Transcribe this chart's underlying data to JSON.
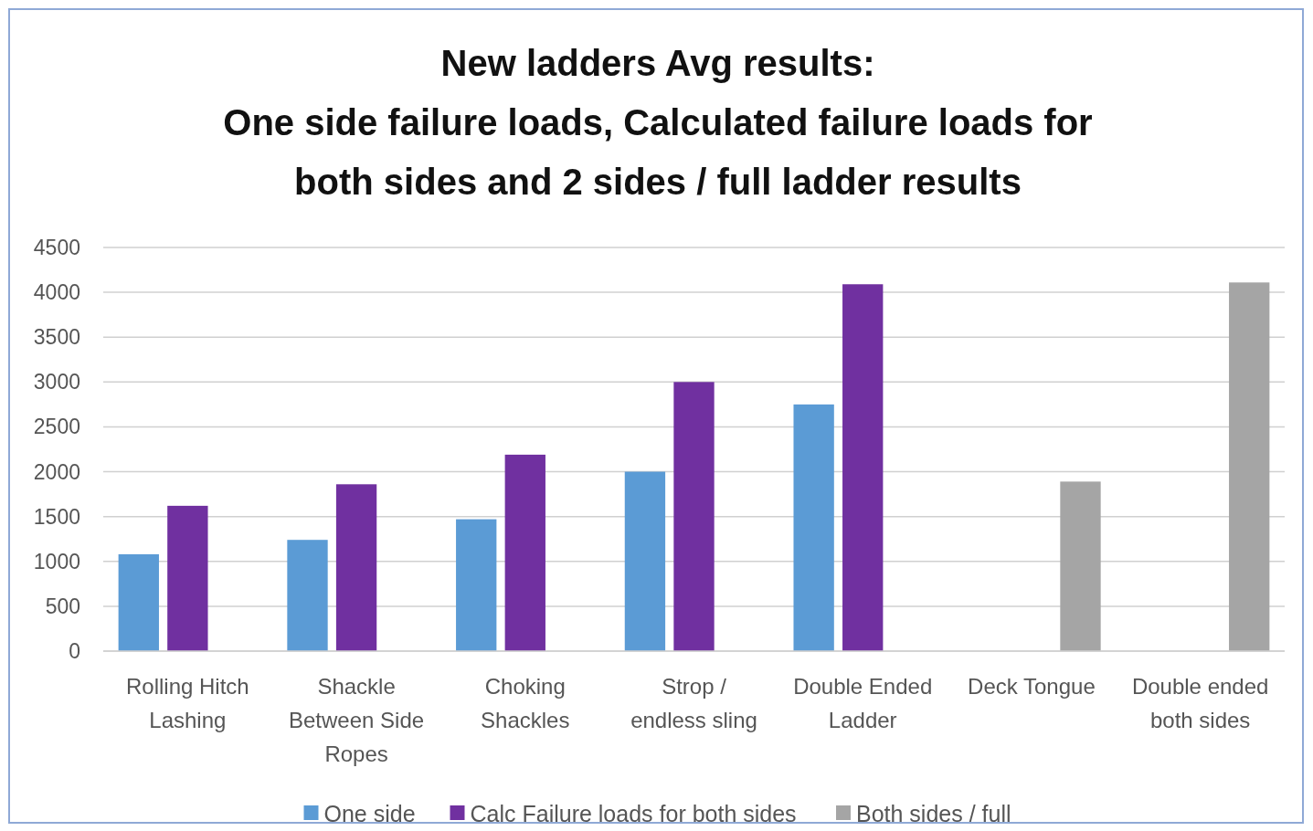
{
  "chart_data": {
    "type": "bar",
    "title": "New ladders Avg results:\nOne side failure loads, Calculated failure loads for\nboth sides and 2 sides / full ladder results",
    "categories": [
      "Rolling Hitch Lashing",
      "Shackle Between Side Ropes",
      "Choking Shackles",
      "Strop / endless sling",
      "Double Ended Ladder",
      "Deck Tongue",
      "Double ended both sides"
    ],
    "series": [
      {
        "name": "One side",
        "color": "#5b9bd5",
        "values": [
          1080,
          1240,
          1470,
          2000,
          2750,
          null,
          null
        ]
      },
      {
        "name": "Calc Failure loads for both sides",
        "color": "#7030a0",
        "values": [
          1620,
          1860,
          2190,
          3000,
          4090,
          null,
          null
        ]
      },
      {
        "name": "Both sides / full",
        "color": "#a5a5a5",
        "values": [
          null,
          null,
          null,
          null,
          null,
          1890,
          4110
        ]
      }
    ],
    "ylim": [
      0,
      4500
    ],
    "yticks": [
      0,
      500,
      1000,
      1500,
      2000,
      2500,
      3000,
      3500,
      4000,
      4500
    ],
    "grid": "y",
    "legend": "bottom"
  }
}
